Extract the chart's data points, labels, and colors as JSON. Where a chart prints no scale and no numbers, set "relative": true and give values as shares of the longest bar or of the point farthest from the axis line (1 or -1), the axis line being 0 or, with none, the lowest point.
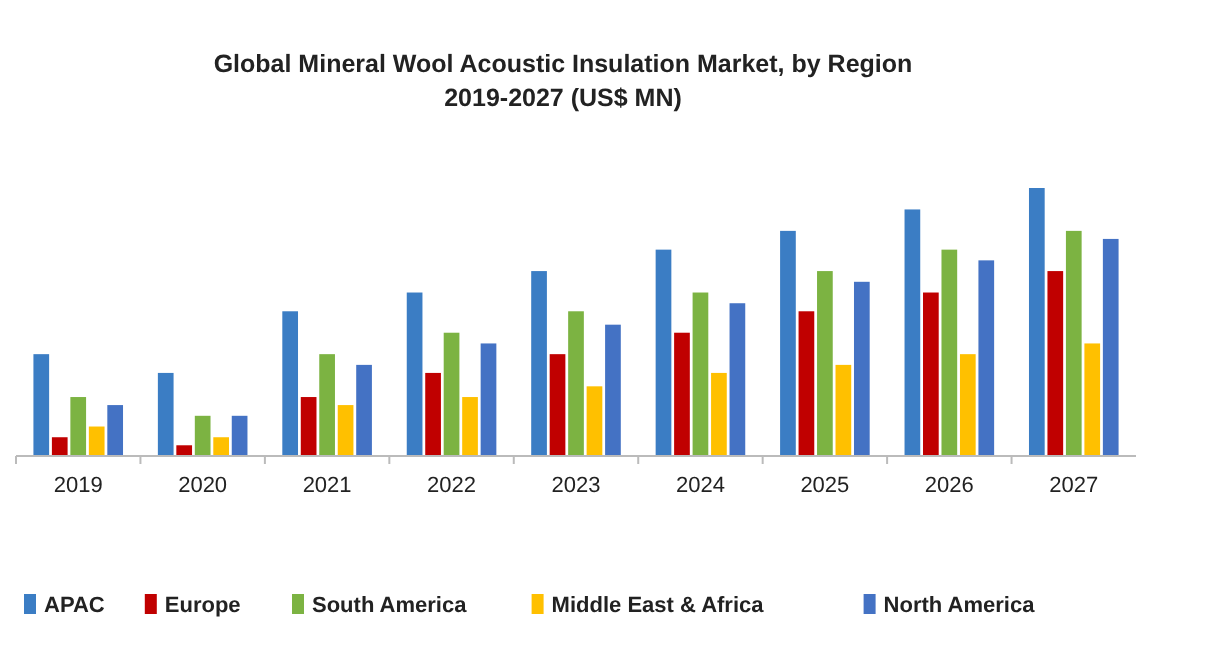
{
  "chart_data": {
    "type": "bar",
    "title": "Global Mineral Wool Acoustic Insulation Market, by Region",
    "subtitle": "2019-2027 (US$ MN)",
    "relative": true,
    "legend": "bottom",
    "categories": [
      "2019",
      "2020",
      "2021",
      "2022",
      "2023",
      "2024",
      "2025",
      "2026",
      "2027"
    ],
    "series": [
      {
        "name": "APAC",
        "color": "#3b7dc4",
        "values": [
          0.38,
          0.31,
          0.54,
          0.61,
          0.69,
          0.77,
          0.84,
          0.92,
          1
        ]
      },
      {
        "name": "Europe",
        "color": "#c00000",
        "values": [
          0.07,
          0.04,
          0.22,
          0.31,
          0.38,
          0.46,
          0.54,
          0.61,
          0.69
        ]
      },
      {
        "name": "South America",
        "color": "#7cb342",
        "values": [
          0.22,
          0.15,
          0.38,
          0.46,
          0.54,
          0.61,
          0.69,
          0.77,
          0.84
        ]
      },
      {
        "name": "Middle East & Africa",
        "color": "#ffc000",
        "values": [
          0.11,
          0.07,
          0.19,
          0.22,
          0.26,
          0.31,
          0.34,
          0.38,
          0.42
        ]
      },
      {
        "name": "North America",
        "color": "#4472c4",
        "values": [
          0.19,
          0.15,
          0.34,
          0.42,
          0.49,
          0.57,
          0.65,
          0.73,
          0.81
        ]
      }
    ]
  }
}
